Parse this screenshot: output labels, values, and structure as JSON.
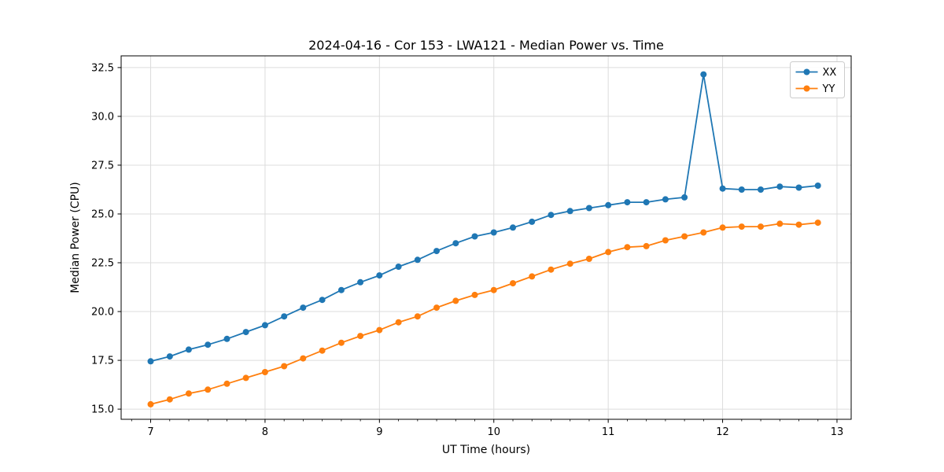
{
  "figure": {
    "background": "#ffffff"
  },
  "chart_data": {
    "type": "line",
    "title": "2024-04-16 - Cor 153 - LWA121 - Median Power vs. Time",
    "xlabel": "UT Time (hours)",
    "ylabel": "Median Power (CPU)",
    "xlim": [
      6.742,
      13.124
    ],
    "ylim": [
      14.48,
      33.1
    ],
    "grid": true,
    "grid_color": "#dcdcdc",
    "spine_color": "#000000",
    "x_major_ticks": [
      7,
      8,
      9,
      10,
      11,
      12,
      13
    ],
    "x_tick_labels": [
      "7",
      "8",
      "9",
      "10",
      "11",
      "12",
      "13"
    ],
    "x_minor_tick_step": 0.16667,
    "y_major_ticks": [
      15.0,
      17.5,
      20.0,
      22.5,
      25.0,
      27.5,
      30.0,
      32.5
    ],
    "y_tick_labels": [
      "15.0",
      "17.5",
      "20.0",
      "22.5",
      "25.0",
      "27.5",
      "30.0",
      "32.5"
    ],
    "legend": {
      "position": "upper right",
      "border_color": "#cccccc"
    },
    "x": [
      7.0,
      7.167,
      7.333,
      7.5,
      7.667,
      7.833,
      8.0,
      8.167,
      8.333,
      8.5,
      8.667,
      8.833,
      9.0,
      9.167,
      9.333,
      9.5,
      9.667,
      9.833,
      10.0,
      10.167,
      10.333,
      10.5,
      10.667,
      10.833,
      11.0,
      11.167,
      11.333,
      11.5,
      11.667,
      11.833,
      12.0,
      12.167,
      12.333,
      12.5,
      12.667,
      12.833
    ],
    "series": [
      {
        "name": "XX",
        "color": "#1f77b4",
        "marker": "circle",
        "values": [
          17.45,
          17.7,
          18.05,
          18.3,
          18.6,
          18.95,
          19.3,
          19.75,
          20.2,
          20.6,
          21.1,
          21.5,
          21.85,
          22.3,
          22.65,
          23.1,
          23.5,
          23.85,
          24.05,
          24.3,
          24.6,
          24.95,
          25.15,
          25.3,
          25.45,
          25.6,
          25.6,
          25.75,
          25.85,
          32.15,
          26.3,
          26.25,
          26.25,
          26.4,
          26.35,
          26.45
        ]
      },
      {
        "name": "YY",
        "color": "#ff7f0e",
        "marker": "circle",
        "values": [
          15.25,
          15.5,
          15.8,
          16.0,
          16.3,
          16.6,
          16.9,
          17.2,
          17.6,
          18.0,
          18.4,
          18.75,
          19.05,
          19.45,
          19.75,
          20.2,
          20.55,
          20.85,
          21.1,
          21.45,
          21.8,
          22.15,
          22.45,
          22.7,
          23.05,
          23.3,
          23.35,
          23.65,
          23.85,
          24.05,
          24.3,
          24.35,
          24.35,
          24.5,
          24.45,
          24.55
        ]
      }
    ]
  }
}
